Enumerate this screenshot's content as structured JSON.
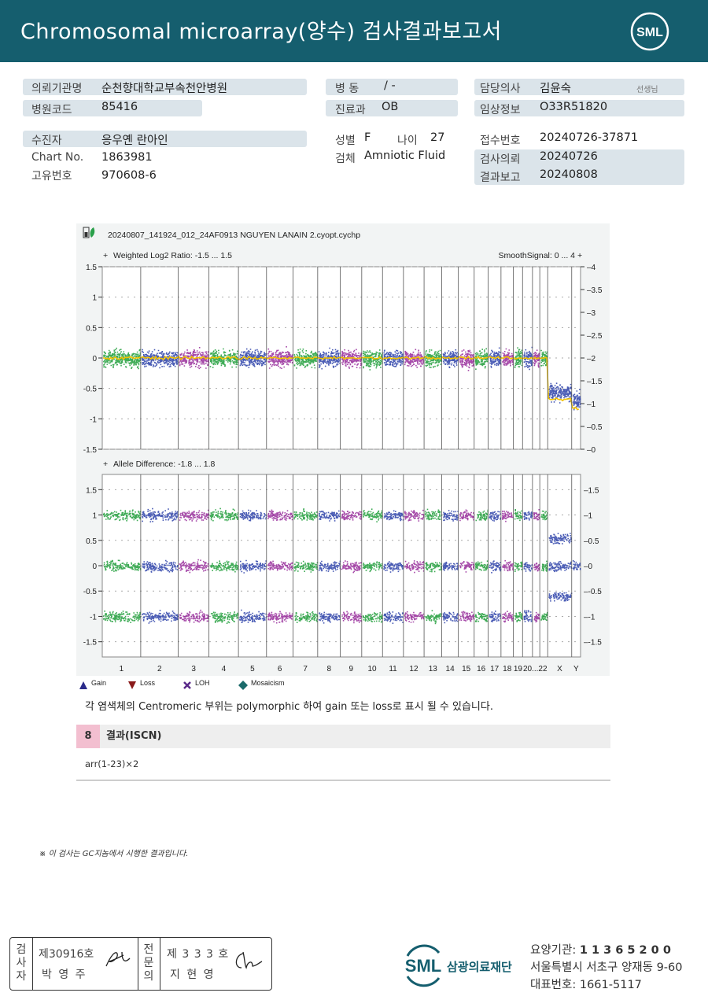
{
  "header": {
    "title": "Chromosomal  microarray(양수) 검사결과보고서",
    "logo_text": "SML"
  },
  "patient_info": {
    "institution_label": "의뢰기관명",
    "institution": "순천향대학교부속천안병원",
    "hospital_code_label": "병원코드",
    "hospital_code": "85416",
    "ward_label": "병  동",
    "ward": "/ -",
    "department_label": "진료과",
    "department": "OB",
    "doctor_label": "담당의사",
    "doctor": "김윤숙",
    "doctor_suffix": "선생님",
    "clinical_label": "임상정보",
    "clinical": "O33R51820",
    "examinee_label": "수진자",
    "examinee": "응우옌 란아인",
    "chart_no_label": "Chart No.",
    "chart_no": "1863981",
    "unique_no_label": "고유번호",
    "unique_no": "970608-6",
    "sex_label": "성별",
    "sex": "F",
    "age_label": "나이",
    "age": "27",
    "specimen_label": "검체",
    "specimen": "Amniotic Fluid",
    "receipt_label": "접수번호",
    "receipt": "20240726-37871",
    "request_label": "검사의뢰",
    "request_date": "20240726",
    "report_label": "결과보고",
    "report_date": "20240808"
  },
  "chart_data": [
    {
      "type": "scatter",
      "title": "20240807_141924_012_24AF0913 NGUYEN LANAIN 2.cyopt.cychp",
      "ylabel": "Weighted Log2 Ratio: -1.5 ... 1.5",
      "ylabel_right": "SmoothSignal: 0 ... 4",
      "ylim": [
        -1.5,
        1.5
      ],
      "y2lim": [
        0,
        4
      ],
      "yticks": [
        "1.5",
        "1",
        "0.5",
        "0",
        "-0.5",
        "-1",
        "-1.5"
      ],
      "y2ticks": [
        "4",
        "3.5",
        "3",
        "2.5",
        "2",
        "1.5",
        "1",
        "0.5",
        "0"
      ],
      "categories": [
        "1",
        "2",
        "3",
        "4",
        "5",
        "6",
        "7",
        "8",
        "9",
        "10",
        "11",
        "12",
        "13",
        "14",
        "15",
        "16",
        "17",
        "18",
        "19",
        "20",
        "21",
        "22",
        "X",
        "Y"
      ],
      "series": [
        {
          "name": "Log2 Ratio",
          "values": [
            0,
            0,
            0,
            0,
            0,
            0,
            0,
            0,
            0,
            0,
            0,
            0,
            0,
            0,
            0,
            0,
            0,
            0,
            0,
            0,
            0,
            0,
            -0.55,
            -0.7
          ]
        },
        {
          "name": "SmoothSignal",
          "values": [
            2,
            2,
            2,
            2,
            2,
            2,
            2,
            2,
            2,
            2,
            2,
            2,
            2,
            2,
            2,
            2,
            2,
            2,
            2,
            2,
            2,
            2,
            1.1,
            0.9
          ]
        }
      ]
    },
    {
      "type": "scatter",
      "ylabel": "Allele Difference: -1.8 ... 1.8",
      "ylim": [
        -1.8,
        1.8
      ],
      "yticks": [
        "1.5",
        "1",
        "0.5",
        "0",
        "-0.5",
        "-1",
        "-1.5"
      ],
      "y2ticks": [
        "1.5",
        "1",
        "0.5",
        "0",
        "-0.5",
        "-1",
        "-1.5"
      ],
      "categories": [
        "1",
        "2",
        "3",
        "4",
        "5",
        "6",
        "7",
        "8",
        "9",
        "10",
        "11",
        "12",
        "13",
        "14",
        "15",
        "16",
        "17",
        "18",
        "19",
        "20",
        "21",
        "22",
        "X",
        "Y"
      ],
      "bands": [
        1,
        0,
        -1
      ],
      "xy_bands": [
        0.55,
        0,
        -0.6
      ]
    }
  ],
  "chart_labels": {
    "title": "20240807_141924_012_24AF0913 NGUYEN LANAIN 2.cyopt.cychp",
    "top_left": "Weighted Log2 Ratio: -1.5 ... 1.5",
    "top_right": "SmoothSignal: 0 ... 4",
    "bottom_left": "Allele Difference: -1.8 ... 1.8",
    "x_label_2022": "20...22"
  },
  "legend": [
    {
      "label": "Gain",
      "color": "#2a2a8a",
      "icon": "triangle-up-icon"
    },
    {
      "label": "Loss",
      "color": "#8a1a1a",
      "icon": "triangle-down-icon"
    },
    {
      "label": "LOH",
      "color": "#5a2a8a",
      "icon": "x-mark-icon"
    },
    {
      "label": "Mosaicism",
      "color": "#1a6a6a",
      "icon": "diamond-icon"
    }
  ],
  "note": "각 염색체의 Centromeric 부위는 polymorphic 하여 gain 또는 loss로 표시 될 수 있습니다.",
  "result": {
    "number": "8",
    "title": "결과(ISCN)",
    "text": "arr(1-23)×2"
  },
  "footnote": "※ 이 검사는 GC지놈에서 시행한 결과입니다.",
  "signatures": {
    "examiner_label": "검사자",
    "examiner_license": "제30916호",
    "examiner_name": "박 영 주",
    "specialist_label": "전문의",
    "specialist_license": "제 3 3 3 호",
    "specialist_name": "지 현 영"
  },
  "footer": {
    "org_logo": "SML",
    "org_name": "삼광의료재단",
    "institution_code_label": "요양기관:",
    "institution_code": "1 1 3 6 5 2 0 0",
    "address": "서울특별시 서초구 양재동 9-60",
    "phone_label": "대표번호:",
    "phone": "1661-5117"
  },
  "colors": {
    "header_bg": "#155e6e",
    "chrom_green": "#1e9e3a",
    "chrom_blue": "#2a3fa8",
    "chrom_purple": "#962a9a",
    "smooth_yellow": "#f2c200",
    "result_badge": "#f3bfd0"
  }
}
